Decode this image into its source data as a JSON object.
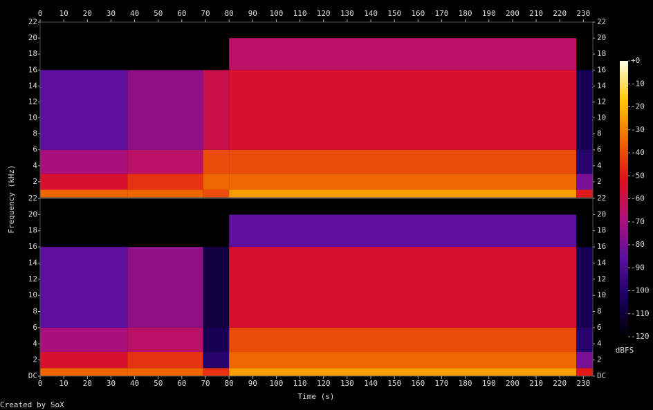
{
  "chart_data": {
    "type": "spectrogram",
    "y_label": "Frequency (kHz)",
    "x_label": "Time (s)",
    "colorbar_label": "dBFS",
    "footer": "Created by SoX",
    "xlim": [
      0,
      234
    ],
    "xticks": [
      0,
      10,
      20,
      30,
      40,
      50,
      60,
      70,
      80,
      90,
      100,
      110,
      120,
      130,
      140,
      150,
      160,
      170,
      180,
      190,
      200,
      210,
      220,
      230
    ],
    "ylim": [
      0,
      22
    ],
    "zlim": [
      -120,
      0
    ],
    "zticks": [
      {
        "value": 0,
        "label": "+0"
      },
      -10,
      -20,
      -30,
      -40,
      -50,
      -60,
      -70,
      -80,
      -90,
      -100,
      -110,
      -120
    ],
    "colorscale": [
      "#000000",
      "#1a0060",
      "#5a10a0",
      "#b0107a",
      "#e0101a",
      "#f06a00",
      "#ffc800",
      "#ffffe8"
    ],
    "time_edges": [
      0,
      37,
      69,
      80,
      227,
      234
    ],
    "freq_edges": [
      0,
      1,
      3,
      6,
      16,
      20,
      22
    ],
    "channels": [
      {
        "yticks": [
          2,
          4,
          6,
          8,
          10,
          12,
          14,
          16,
          18,
          20,
          22
        ],
        "z": [
          [
            -35,
            -35,
            -40,
            -25,
            -50
          ],
          [
            -55,
            -45,
            -35,
            -35,
            -80
          ],
          [
            -70,
            -65,
            -40,
            -40,
            -100
          ],
          [
            -85,
            -75,
            -60,
            -55,
            -105
          ],
          [
            -120,
            -120,
            -120,
            -65,
            -120
          ],
          [
            -120,
            -120,
            -120,
            -120,
            -120
          ]
        ]
      },
      {
        "yticks": [
          {
            "value": 0,
            "label": "DC"
          },
          2,
          4,
          6,
          8,
          10,
          12,
          14,
          16,
          18,
          20,
          22
        ],
        "z": [
          [
            -35,
            -35,
            -45,
            -25,
            -50
          ],
          [
            -55,
            -45,
            -100,
            -35,
            -80
          ],
          [
            -70,
            -65,
            -105,
            -40,
            -100
          ],
          [
            -85,
            -75,
            -108,
            -55,
            -105
          ],
          [
            -120,
            -120,
            -120,
            -85,
            -120
          ],
          [
            -120,
            -120,
            -120,
            -120,
            -120
          ]
        ]
      }
    ]
  }
}
